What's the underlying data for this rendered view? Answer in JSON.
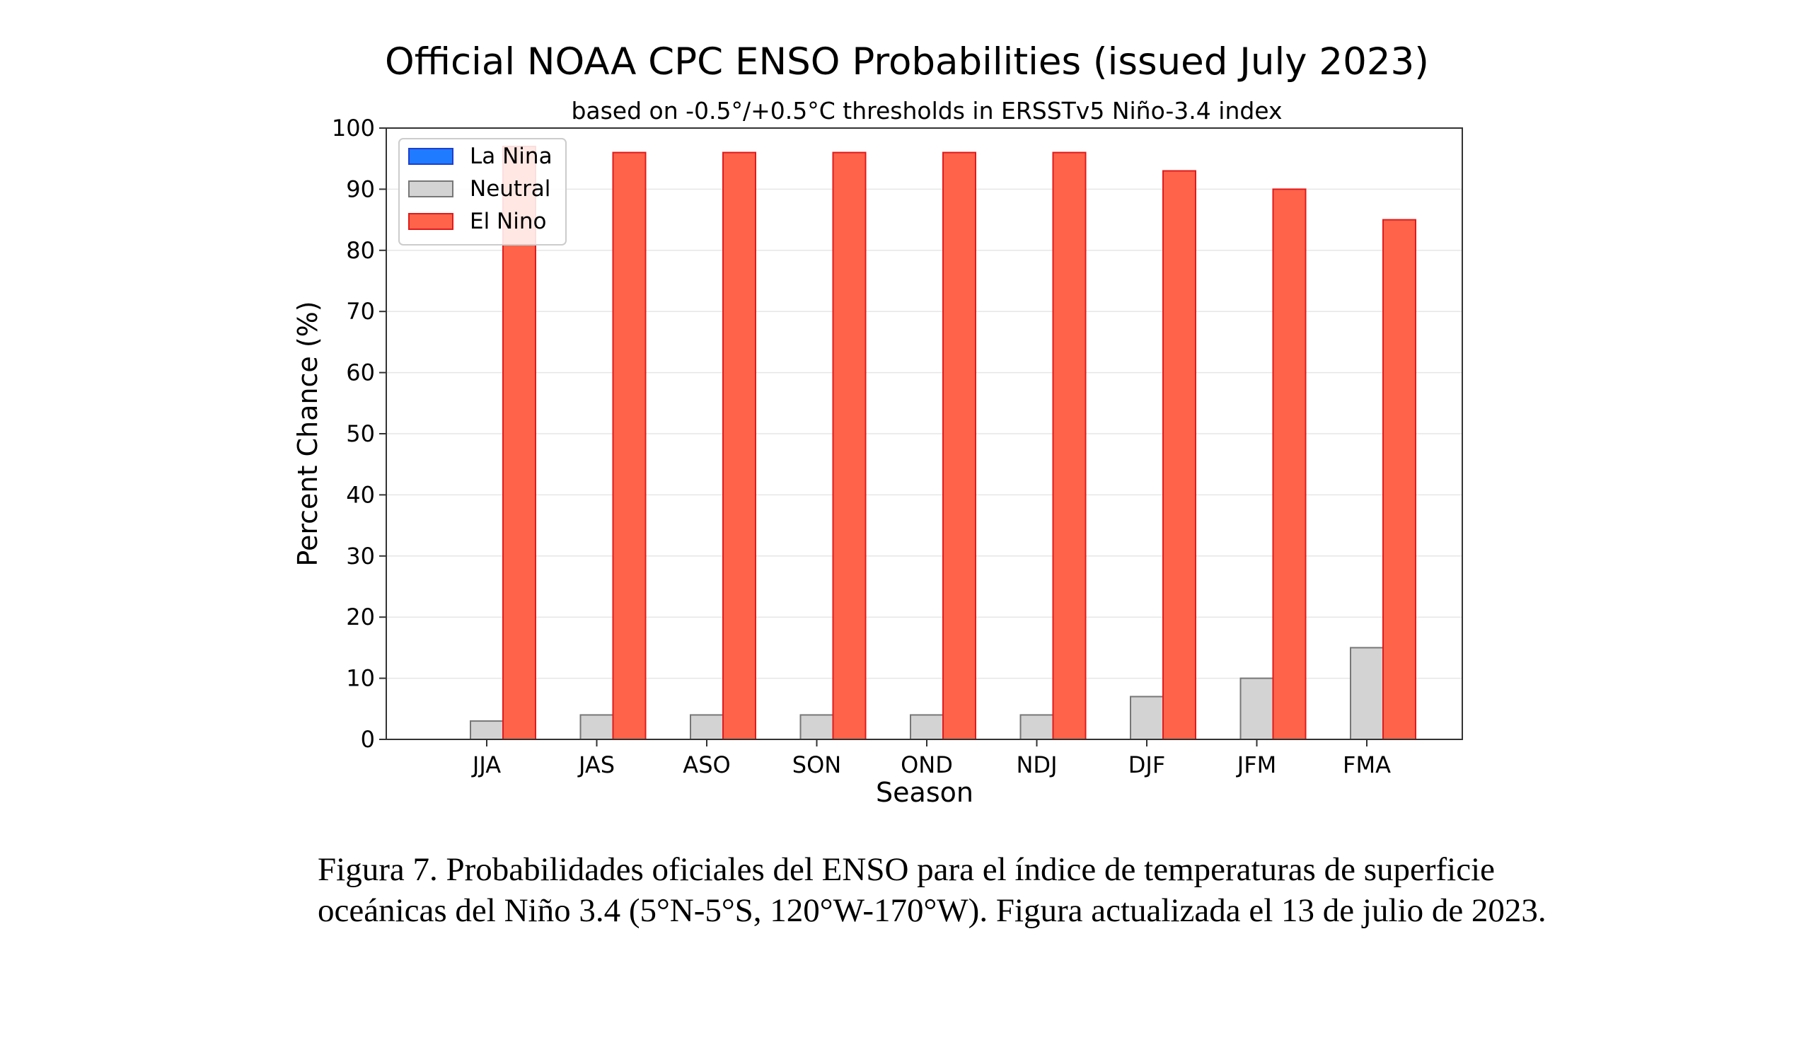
{
  "chart_data": {
    "type": "bar",
    "title": "Official NOAA CPC ENSO Probabilities (issued July 2023)",
    "subtitle": "based on -0.5°/+0.5°C thresholds in ERSSTv5 Niño-3.4 index",
    "xlabel": "Season",
    "ylabel": "Percent Chance (%)",
    "ylim": [
      0,
      100
    ],
    "yticks": [
      "0",
      "10",
      "20",
      "30",
      "40",
      "50",
      "60",
      "70",
      "80",
      "90",
      "100"
    ],
    "grid": true,
    "legend_position": "top-left",
    "categories": [
      "JJA",
      "JAS",
      "ASO",
      "SON",
      "OND",
      "NDJ",
      "DJF",
      "JFM",
      "FMA"
    ],
    "series": [
      {
        "name": "La Nina",
        "color": "#1f7bff",
        "edge": "#1f3fcc",
        "values": [
          0,
          0,
          0,
          0,
          0,
          0,
          0,
          0,
          0
        ]
      },
      {
        "name": "Neutral",
        "color": "#d3d3d3",
        "edge": "#777777",
        "values": [
          3,
          4,
          4,
          4,
          4,
          4,
          7,
          10,
          15
        ]
      },
      {
        "name": "El Nino",
        "color": "#ff634a",
        "edge": "#e01b1b",
        "values": [
          97,
          96,
          96,
          96,
          96,
          96,
          93,
          90,
          85
        ]
      }
    ]
  },
  "caption": "Figura 7. Probabilidades oficiales del ENSO para el índice de temperaturas de superficie oceánicas del Niño 3.4 (5°N-5°S, 120°W-170°W). Figura actualizada el 13 de julio de 2023."
}
